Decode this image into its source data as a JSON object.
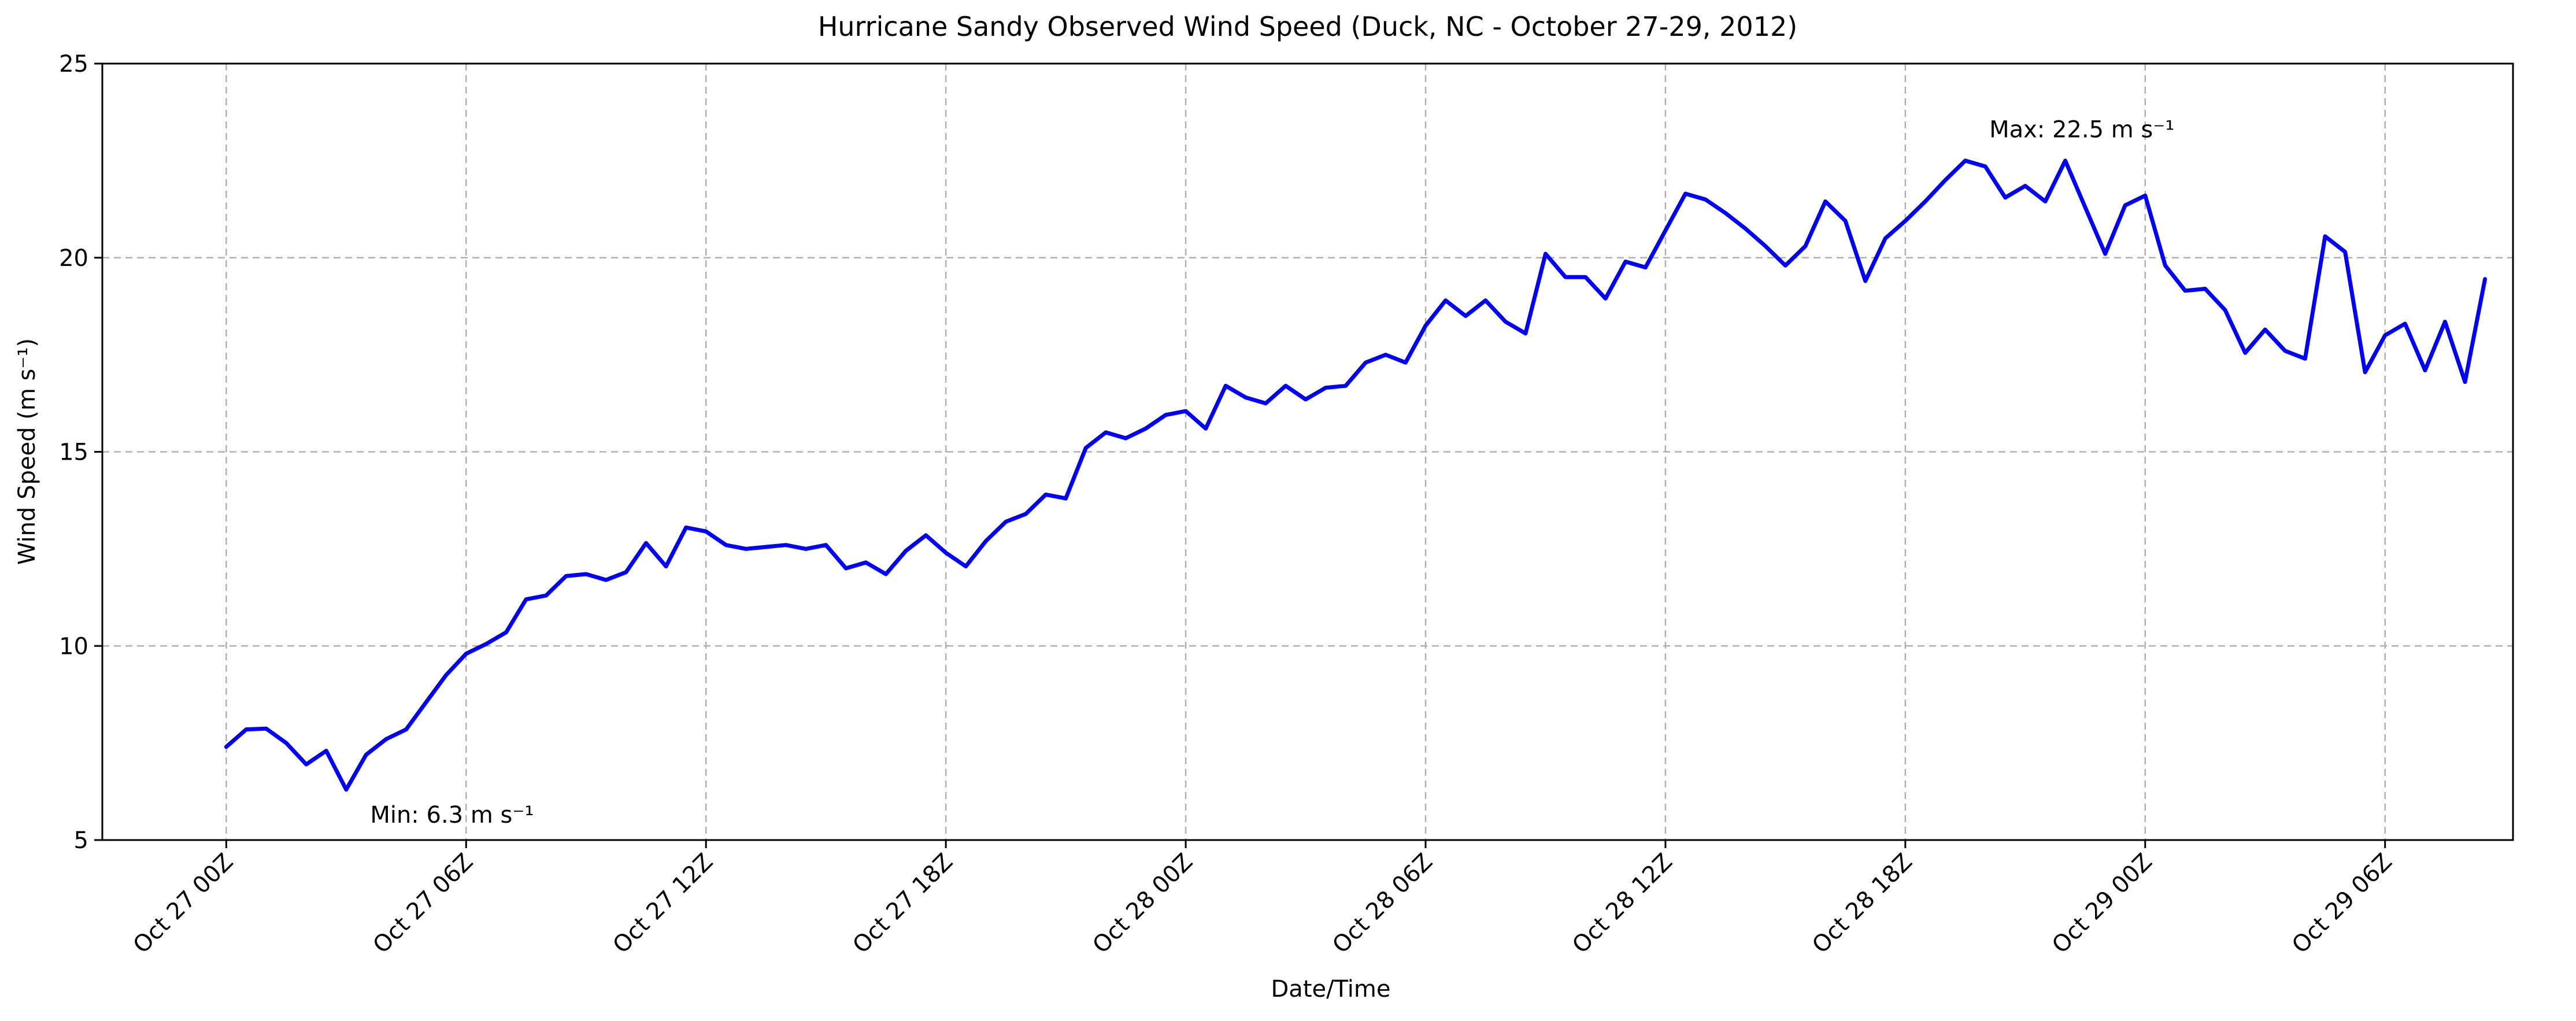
{
  "chart_data": {
    "type": "line",
    "title": "Hurricane Sandy Observed Wind Speed (Duck, NC - October 27-29, 2012)",
    "xlabel": "Date/Time",
    "ylabel": "Wind Speed (m s⁻¹)",
    "ylim": [
      5,
      25
    ],
    "xlim_hours": [
      -3.1,
      57.2
    ],
    "grid": true,
    "x_ticks": [
      {
        "hour": 0,
        "label": "Oct 27 00Z"
      },
      {
        "hour": 6,
        "label": "Oct 27 06Z"
      },
      {
        "hour": 12,
        "label": "Oct 27 12Z"
      },
      {
        "hour": 18,
        "label": "Oct 27 18Z"
      },
      {
        "hour": 24,
        "label": "Oct 28 00Z"
      },
      {
        "hour": 30,
        "label": "Oct 28 06Z"
      },
      {
        "hour": 36,
        "label": "Oct 28 12Z"
      },
      {
        "hour": 42,
        "label": "Oct 28 18Z"
      },
      {
        "hour": 48,
        "label": "Oct 29 00Z"
      },
      {
        "hour": 54,
        "label": "Oct 29 06Z"
      }
    ],
    "y_ticks": [
      5,
      10,
      15,
      20,
      25
    ],
    "series": [
      {
        "color": "#0000ff",
        "x_hours": [
          0,
          0.5,
          1,
          1.5,
          2,
          2.5,
          3,
          3.5,
          4,
          4.5,
          5,
          5.5,
          6,
          6.5,
          7,
          7.5,
          8,
          8.5,
          9,
          9.5,
          10,
          10.5,
          11,
          11.5,
          12,
          12.5,
          13,
          13.5,
          14,
          14.5,
          15,
          15.5,
          16,
          16.5,
          17,
          17.5,
          18,
          18.5,
          19,
          19.5,
          20,
          20.5,
          21,
          21.5,
          22,
          22.5,
          23,
          23.5,
          24,
          24.5,
          25,
          25.5,
          26,
          26.5,
          27,
          27.5,
          28,
          28.5,
          29,
          29.5,
          30,
          30.5,
          31,
          31.5,
          32,
          32.5,
          33,
          33.5,
          34,
          34.5,
          35,
          35.5,
          36,
          36.5,
          37,
          37.5,
          38,
          38.5,
          39,
          39.5,
          40,
          40.5,
          41,
          41.5,
          42,
          42.5,
          43,
          43.5,
          44,
          44.5,
          45,
          45.5,
          46,
          46.5,
          47,
          47.5,
          48,
          48.5,
          49,
          49.5,
          50,
          50.5,
          51,
          51.5,
          52,
          52.5,
          53,
          53.5,
          54,
          54.5,
          55,
          55.5,
          56,
          56.5
        ],
        "values": [
          7.4,
          7.85,
          7.87,
          7.5,
          6.95,
          7.3,
          6.3,
          7.2,
          7.6,
          7.85,
          8.55,
          9.25,
          9.8,
          10.05,
          10.35,
          11.2,
          11.3,
          11.8,
          11.85,
          11.7,
          11.9,
          12.65,
          12.05,
          13.05,
          12.95,
          12.6,
          12.5,
          12.55,
          12.6,
          12.5,
          12.6,
          12.0,
          12.15,
          11.85,
          12.45,
          12.85,
          12.4,
          12.05,
          12.7,
          13.2,
          13.4,
          13.9,
          13.8,
          15.1,
          15.5,
          15.35,
          15.6,
          15.95,
          16.05,
          15.6,
          16.7,
          16.4,
          16.25,
          16.7,
          16.35,
          16.65,
          16.7,
          17.3,
          17.5,
          17.3,
          18.25,
          18.9,
          18.5,
          18.9,
          18.35,
          18.05,
          20.1,
          19.5,
          19.5,
          18.95,
          19.9,
          19.75,
          20.7,
          21.65,
          21.5,
          21.15,
          20.75,
          20.3,
          19.8,
          20.3,
          21.45,
          20.95,
          19.4,
          20.5,
          20.95,
          21.45,
          22.0,
          22.5,
          22.35,
          21.55,
          21.85,
          21.45,
          22.5,
          21.3,
          20.1,
          21.35,
          21.6,
          19.8,
          19.15,
          19.2,
          18.65,
          17.55,
          18.15,
          17.6,
          17.4,
          20.55,
          20.15,
          17.05,
          18.0,
          18.3,
          17.1,
          18.35,
          16.8,
          19.45
        ]
      }
    ],
    "annotations": [
      {
        "text": "Min: 6.3 m s⁻¹",
        "hour": 3.6,
        "value": 5.45
      },
      {
        "text": "Max: 22.5 m s⁻¹",
        "hour": 44.1,
        "value": 23.1
      }
    ]
  }
}
